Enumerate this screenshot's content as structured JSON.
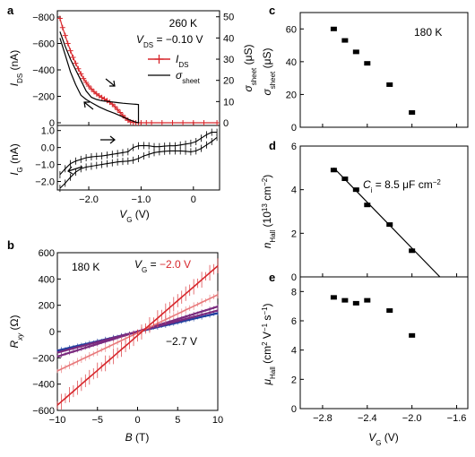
{
  "colors": {
    "red": "#d7262b",
    "black": "#000000",
    "blue": "#1f3f9f",
    "purple": "#7a2a7e",
    "red_light": "#e8797b"
  },
  "panels": {
    "a": {
      "label": "a",
      "annot_temp": "260 K",
      "annot_vds": "V",
      "annot_vds_sub": "DS",
      "annot_vds_val": " = −0.10 V",
      "legend": [
        {
          "main": "I",
          "sub": "DS"
        },
        {
          "main": "σ",
          "sub": "sheet"
        }
      ],
      "ylabel_top": {
        "main": "I",
        "sub": "DS",
        "rest": " (nA)"
      },
      "ylabel_right": {
        "main": "σ",
        "sub": "sheet",
        "rest": " (μS)"
      },
      "ylabel_bottom": {
        "main": "I",
        "sub": "G",
        "rest": " (nA)"
      },
      "xlabel": {
        "main": "V",
        "sub": "G",
        "rest": " (V)"
      },
      "yticks_top": [
        "−800",
        "−600",
        "−400",
        "−200",
        "0"
      ],
      "yticks_right": [
        "50",
        "40",
        "30",
        "20",
        "10",
        "0"
      ],
      "yticks_bottom": [
        "1.0",
        "0.0",
        "−1.0",
        "−2.0"
      ],
      "xticks": [
        "−2.0",
        "−1.0",
        "0"
      ]
    },
    "b": {
      "label": "b",
      "annot_temp": "180 K",
      "annot_vg_main": "V",
      "annot_vg_sub": "G",
      "annot_vg_eq": " = ",
      "annot_vg_val": "−2.0 V",
      "annot_low": "−2.7 V",
      "ylabel": {
        "main": "R",
        "sub": "xy",
        "rest": " (Ω)"
      },
      "xlabel": {
        "main": "B",
        "rest": " (T)"
      },
      "yticks": [
        "600",
        "400",
        "200",
        "0",
        "−200",
        "−400",
        "−600"
      ],
      "xticks": [
        "−10",
        "−5",
        "0",
        "5",
        "10"
      ]
    },
    "c": {
      "label": "c",
      "annot_temp": "180 K",
      "ylabel": {
        "main": "σ",
        "sub": "sheet",
        "rest": " (μS)"
      },
      "yticks": [
        "60",
        "40",
        "20",
        "0"
      ]
    },
    "d": {
      "label": "d",
      "annot_main": "C",
      "annot_sub": "i",
      "annot_rest": " = 8.5 μF cm",
      "annot_sup": "−2",
      "ylabel": {
        "main": "n",
        "sub": "Hall",
        "rest": " (10",
        "sup": "13",
        "rest2": " cm",
        "sup2": "−2",
        "rest3": ")"
      },
      "yticks": [
        "6",
        "4",
        "2",
        "0"
      ]
    },
    "e": {
      "label": "e",
      "ylabel": {
        "main": "μ",
        "sub": "Hall",
        "rest": " (cm",
        "sup": "2",
        "rest2": " V",
        "sup2": "−1",
        "rest3": " s",
        "sup3": "−1",
        "rest4": ")"
      },
      "yticks": [
        "8",
        "6",
        "4",
        "2",
        "0"
      ],
      "xticks": [
        "−2.8",
        "−2.4",
        "−2.0",
        "−1.6"
      ],
      "xlabel": {
        "main": "V",
        "sub": "G",
        "rest": " (V)"
      }
    }
  },
  "chart_data": [
    {
      "panel": "a-top",
      "type": "line",
      "xlabel": "VG (V)",
      "ylabel": "IDS (nA)",
      "y2label": "σsheet (μS)",
      "xlim": [
        -2.6,
        0.5
      ],
      "ylim": [
        -800,
        0
      ],
      "y2lim": [
        0,
        52
      ],
      "series": [
        {
          "name": "IDS",
          "color": "#d7262b",
          "marker": "+",
          "x": [
            -2.55,
            -2.5,
            -2.45,
            -2.4,
            -2.35,
            -2.3,
            -2.25,
            -2.2,
            -2.15,
            -2.1,
            -2.05,
            -2.0,
            -1.95,
            -1.9,
            -1.85,
            -1.8,
            -1.75,
            -1.7,
            -1.65,
            -1.6,
            -1.55,
            -1.5,
            -1.45,
            -1.4,
            -1.35,
            -1.3,
            -1.25,
            -1.2,
            -1.15,
            -1.1,
            -1.05,
            -1.0,
            -0.9,
            -0.8,
            -0.6,
            -0.4,
            -0.2,
            0.0,
            0.2,
            0.45
          ],
          "values": [
            -790,
            -720,
            -660,
            -600,
            -545,
            -495,
            -450,
            -408,
            -370,
            -335,
            -305,
            -278,
            -255,
            -235,
            -218,
            -204,
            -192,
            -180,
            -168,
            -155,
            -140,
            -122,
            -100,
            -78,
            -56,
            -36,
            -18,
            -6,
            -2,
            0,
            0,
            0,
            0,
            0,
            0,
            0,
            0,
            0,
            0,
            0
          ]
        },
        {
          "name": "σsheet",
          "color": "#000000",
          "x": [
            -2.55,
            -2.45,
            -2.35,
            -2.25,
            -2.15,
            -2.05,
            -1.95,
            -1.85,
            -1.75,
            -1.65,
            -1.55,
            -1.45,
            -1.35,
            -1.25,
            -1.15,
            -1.1,
            -1.05,
            -1.05,
            -1.1,
            -1.2,
            -1.35,
            -1.5,
            -1.65,
            -1.8,
            -1.95,
            -2.05,
            -2.15,
            -2.25,
            -2.35,
            -2.45,
            -2.55
          ],
          "values": [
            43,
            36,
            30,
            25,
            20,
            15,
            12,
            11,
            10.4,
            10.1,
            9.8,
            9.5,
            9.2,
            9.0,
            8.8,
            8.7,
            8.6,
            0,
            0.3,
            1.2,
            2.8,
            4.4,
            5.8,
            7.5,
            9.5,
            11,
            13,
            18,
            24,
            32,
            40
          ]
        }
      ]
    },
    {
      "panel": "a-bottom",
      "type": "line",
      "xlabel": "VG (V)",
      "ylabel": "IG (nA)",
      "xlim": [
        -2.6,
        0.5
      ],
      "ylim": [
        -2.5,
        1.3
      ],
      "series": [
        {
          "name": "IG forward",
          "x": [
            -2.55,
            -2.45,
            -2.35,
            -2.25,
            -2.15,
            -2.05,
            -1.95,
            -1.85,
            -1.75,
            -1.65,
            -1.55,
            -1.45,
            -1.35,
            -1.25,
            -1.15,
            -1.05,
            -0.95,
            -0.85,
            -0.75,
            -0.65,
            -0.55,
            -0.45,
            -0.35,
            -0.25,
            -0.15,
            -0.05,
            0.05,
            0.15,
            0.25,
            0.35,
            0.45
          ],
          "values": [
            -1.6,
            -1.25,
            -0.95,
            -0.8,
            -0.7,
            -0.6,
            -0.55,
            -0.52,
            -0.5,
            -0.45,
            -0.4,
            -0.35,
            -0.3,
            -0.25,
            0.0,
            0.1,
            0.12,
            0.1,
            0.05,
            0.05,
            0.08,
            0.1,
            0.1,
            0.15,
            0.2,
            0.25,
            0.35,
            0.55,
            0.75,
            0.9,
            0.9
          ]
        },
        {
          "name": "IG reverse",
          "x": [
            0.45,
            0.35,
            0.25,
            0.15,
            0.05,
            -0.05,
            -0.15,
            -0.25,
            -0.35,
            -0.45,
            -0.55,
            -0.65,
            -0.75,
            -0.85,
            -0.95,
            -1.05,
            -1.15,
            -1.25,
            -1.35,
            -1.45,
            -1.55,
            -1.65,
            -1.75,
            -1.85,
            -1.95,
            -2.05,
            -2.15,
            -2.25,
            -2.35,
            -2.45,
            -2.55
          ],
          "values": [
            0.6,
            0.35,
            0.15,
            -0.05,
            -0.2,
            -0.25,
            -0.22,
            -0.2,
            -0.2,
            -0.2,
            -0.22,
            -0.25,
            -0.3,
            -0.4,
            -0.5,
            -0.65,
            -0.75,
            -0.8,
            -0.82,
            -0.85,
            -0.9,
            -0.95,
            -1.0,
            -1.05,
            -1.1,
            -1.15,
            -1.25,
            -1.45,
            -1.75,
            -2.1,
            -2.4
          ]
        }
      ]
    },
    {
      "panel": "b",
      "type": "line",
      "xlabel": "B (T)",
      "ylabel": "Rxy (Ω)",
      "xlim": [
        -10,
        10
      ],
      "ylim": [
        -600,
        600
      ],
      "series": [
        {
          "name": "VG = −2.0 V",
          "color": "#d7262b",
          "x": [
            -10,
            10
          ],
          "values": [
            -560,
            500
          ]
        },
        {
          "name": "",
          "color": "#e8797b",
          "x": [
            -10,
            10
          ],
          "values": [
            -300,
            280
          ]
        },
        {
          "name": "",
          "color": "#7a2a7e",
          "x": [
            -10,
            10
          ],
          "values": [
            -190,
            190
          ]
        },
        {
          "name": "",
          "color": "#7a2a7e",
          "x": [
            -10,
            10
          ],
          "values": [
            -160,
            160
          ]
        },
        {
          "name": "−2.7 V",
          "color": "#1f3f9f",
          "x": [
            -10,
            10
          ],
          "values": [
            -145,
            140
          ]
        }
      ]
    },
    {
      "panel": "c",
      "type": "scatter",
      "ylabel": "σsheet (μS)",
      "xlim": [
        -3.0,
        -1.5
      ],
      "ylim": [
        0,
        70
      ],
      "x": [
        -2.7,
        -2.6,
        -2.5,
        -2.4,
        -2.2,
        -2.0
      ],
      "values": [
        60,
        53,
        46,
        39,
        26,
        9
      ]
    },
    {
      "panel": "d",
      "type": "scatter",
      "ylabel": "nHall (10^13 cm^−2)",
      "xlim": [
        -3.0,
        -1.5
      ],
      "ylim": [
        0,
        6
      ],
      "x": [
        -2.7,
        -2.6,
        -2.5,
        -2.4,
        -2.2,
        -2.0
      ],
      "values": [
        4.9,
        4.5,
        4.0,
        3.3,
        2.4,
        1.2
      ],
      "fit_line": {
        "x": [
          -2.7,
          -1.75
        ],
        "values": [
          5.0,
          0
        ]
      }
    },
    {
      "panel": "e",
      "type": "scatter",
      "xlabel": "VG (V)",
      "ylabel": "μHall (cm^2 V^−1 s^−1)",
      "xlim": [
        -3.0,
        -1.5
      ],
      "ylim": [
        0,
        9
      ],
      "x": [
        -2.7,
        -2.6,
        -2.5,
        -2.4,
        -2.2,
        -2.0
      ],
      "values": [
        7.6,
        7.4,
        7.2,
        7.4,
        6.7,
        5.0
      ]
    }
  ]
}
